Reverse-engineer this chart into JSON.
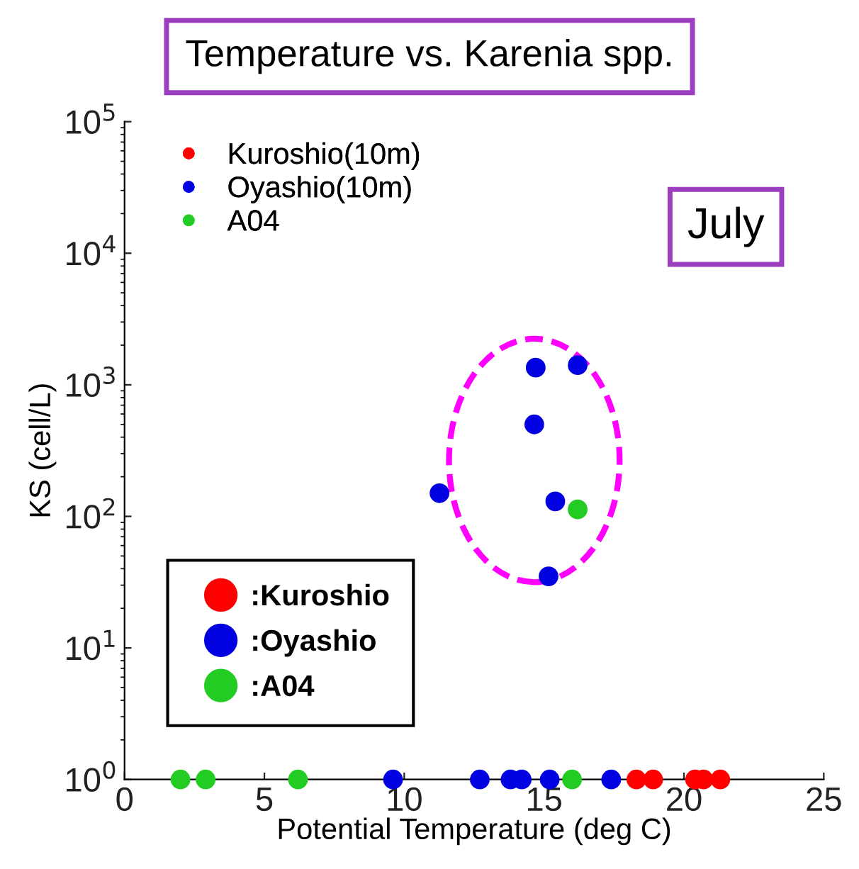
{
  "chart_data": {
    "type": "scatter",
    "title": "Temperature vs. Karenia spp.",
    "xlabel": "Potential Temperature (deg C)",
    "ylabel": "KS (cell/L)",
    "log": "y",
    "xlim": [
      0,
      25
    ],
    "xticks": [
      0,
      5,
      10,
      15,
      20,
      25
    ],
    "ylim": [
      1,
      100000
    ],
    "yticks": [
      {
        "value": 1,
        "label": "10$^{0}$"
      },
      {
        "value": 10,
        "label": "10$^{1}$"
      },
      {
        "value": 100,
        "label": "10$^{2}$"
      },
      {
        "value": 1000,
        "label": "10$^{3}$"
      },
      {
        "value": 10000,
        "label": "10$^{4}$"
      },
      {
        "value": 100000,
        "label": "10$^{5}$"
      }
    ],
    "grid": false,
    "legend": "top left",
    "marker": "circle",
    "series": [
      {
        "name": "Kuroshio(10m)",
        "color": "#ff0000",
        "x": [
          18.3,
          18.7,
          18.9,
          20.4,
          20.7,
          21.3
        ],
        "values": [
          1,
          null,
          1,
          1,
          1,
          1
        ]
      },
      {
        "name": "Oyashio(10m)",
        "color": "#0000e0",
        "x": [
          9.6,
          12.7,
          13.8,
          14.2,
          15.2,
          17.4,
          14.7,
          16.2,
          14.65,
          11.26,
          15.4,
          15.16
        ],
        "values": [
          1,
          1,
          1,
          1,
          1,
          1,
          1350,
          1410,
          500,
          150,
          130,
          35
        ]
      },
      {
        "name": "A04",
        "color": "#22cc22",
        "x": [
          2.0,
          2.7,
          2.9,
          6.2,
          16.0,
          16.2
        ],
        "values": [
          1,
          null,
          1,
          1,
          1,
          113
        ]
      }
    ],
    "annotations": [
      "July",
      ":Kuroshio",
      ":Oyashio",
      ":A04"
    ]
  }
}
